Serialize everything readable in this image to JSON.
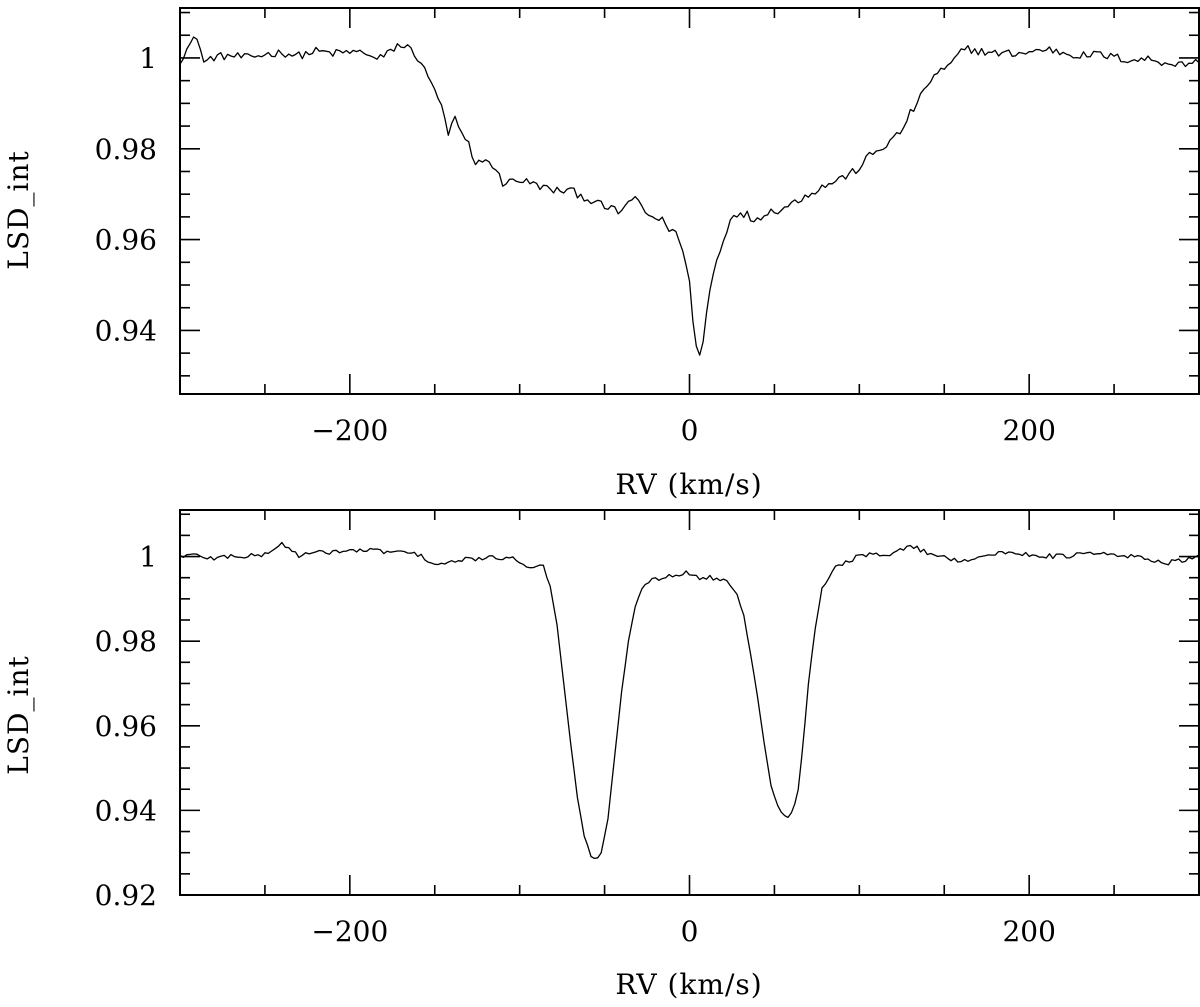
{
  "chart_data": [
    {
      "type": "line",
      "xlabel": "RV (km/s)",
      "ylabel": "LSD_int",
      "xlim": [
        -300,
        300
      ],
      "ylim": [
        0.926,
        1.011
      ],
      "xticks_major": [
        -200,
        0,
        200
      ],
      "xtick_labels": [
        "−200",
        "0",
        "200"
      ],
      "yticks_major": [
        0.94,
        0.96,
        0.98,
        1.0
      ],
      "ytick_labels": [
        "0.94",
        "0.96",
        "0.98",
        "1"
      ],
      "grid": false,
      "series": [
        {
          "anchors": [
            [
              -300,
              0.9995
            ],
            [
              -295,
              1.0025
            ],
            [
              -290,
              1.0048
            ],
            [
              -286,
              0.999
            ],
            [
              -280,
              1.0002
            ],
            [
              -270,
              1.0005
            ],
            [
              -260,
              1.0
            ],
            [
              -250,
              1.0008
            ],
            [
              -240,
              1.0012
            ],
            [
              -230,
              1.0005
            ],
            [
              -220,
              1.0015
            ],
            [
              -210,
              1.001
            ],
            [
              -200,
              1.0013
            ],
            [
              -190,
              1.0012
            ],
            [
              -185,
              0.9995
            ],
            [
              -178,
              1.0008
            ],
            [
              -172,
              1.0028
            ],
            [
              -166,
              1.0024
            ],
            [
              -162,
              1.001
            ],
            [
              -158,
              0.999
            ],
            [
              -154,
              0.9955
            ],
            [
              -150,
              0.9935
            ],
            [
              -146,
              0.989
            ],
            [
              -142,
              0.9832
            ],
            [
              -138,
              0.9868
            ],
            [
              -134,
              0.9828
            ],
            [
              -130,
              0.9808
            ],
            [
              -126,
              0.976
            ],
            [
              -122,
              0.9778
            ],
            [
              -116,
              0.9765
            ],
            [
              -110,
              0.9725
            ],
            [
              -100,
              0.9732
            ],
            [
              -90,
              0.972
            ],
            [
              -80,
              0.9708
            ],
            [
              -70,
              0.9708
            ],
            [
              -60,
              0.969
            ],
            [
              -50,
              0.9672
            ],
            [
              -40,
              0.966
            ],
            [
              -35,
              0.9692
            ],
            [
              -30,
              0.9682
            ],
            [
              -25,
              0.9655
            ],
            [
              -20,
              0.9648
            ],
            [
              -15,
              0.964
            ],
            [
              -12,
              0.9625
            ],
            [
              -8,
              0.9615
            ],
            [
              -5,
              0.9588
            ],
            [
              -2,
              0.9545
            ],
            [
              0,
              0.951
            ],
            [
              2,
              0.942
            ],
            [
              4,
              0.9365
            ],
            [
              6,
              0.9345
            ],
            [
              8,
              0.9375
            ],
            [
              11,
              0.947
            ],
            [
              14,
              0.9525
            ],
            [
              18,
              0.958
            ],
            [
              22,
              0.9622
            ],
            [
              26,
              0.9662
            ],
            [
              30,
              0.9652
            ],
            [
              34,
              0.9655
            ],
            [
              38,
              0.9642
            ],
            [
              45,
              0.966
            ],
            [
              55,
              0.9668
            ],
            [
              65,
              0.969
            ],
            [
              75,
              0.971
            ],
            [
              85,
              0.9728
            ],
            [
              95,
              0.9745
            ],
            [
              100,
              0.9758
            ],
            [
              105,
              0.9782
            ],
            [
              112,
              0.9798
            ],
            [
              118,
              0.9815
            ],
            [
              125,
              0.984
            ],
            [
              130,
              0.9878
            ],
            [
              135,
              0.9905
            ],
            [
              140,
              0.9942
            ],
            [
              146,
              0.9968
            ],
            [
              152,
              0.9978
            ],
            [
              158,
              1.0005
            ],
            [
              163,
              1.0022
            ],
            [
              170,
              1.0015
            ],
            [
              180,
              1.001
            ],
            [
              190,
              1.001
            ],
            [
              200,
              1.0012
            ],
            [
              210,
              1.002
            ],
            [
              220,
              1.0012
            ],
            [
              230,
              1.0005
            ],
            [
              240,
              1.0008
            ],
            [
              250,
              1.0002
            ],
            [
              260,
              0.9995
            ],
            [
              270,
              0.9998
            ],
            [
              280,
              0.999
            ],
            [
              290,
              0.9985
            ],
            [
              300,
              0.9995
            ]
          ]
        }
      ]
    },
    {
      "type": "line",
      "xlabel": "RV (km/s)",
      "ylabel": "LSD_int",
      "xlim": [
        -300,
        300
      ],
      "ylim": [
        0.92,
        1.011
      ],
      "xticks_major": [
        -200,
        0,
        200
      ],
      "xtick_labels": [
        "−200",
        "0",
        "200"
      ],
      "yticks_major": [
        0.92,
        0.94,
        0.96,
        0.98,
        1.0
      ],
      "ytick_labels": [
        "0.92",
        "0.94",
        "0.96",
        "0.98",
        "1"
      ],
      "grid": false,
      "series": [
        {
          "anchors": [
            [
              -300,
              1.0002
            ],
            [
              -290,
              1.0003
            ],
            [
              -280,
              0.9995
            ],
            [
              -270,
              1.0002
            ],
            [
              -260,
              1.0
            ],
            [
              -250,
              1.0005
            ],
            [
              -240,
              1.003
            ],
            [
              -230,
              1.0003
            ],
            [
              -220,
              1.0008
            ],
            [
              -210,
              1.0012
            ],
            [
              -200,
              1.0013
            ],
            [
              -190,
              1.0015
            ],
            [
              -180,
              1.0012
            ],
            [
              -170,
              1.001
            ],
            [
              -160,
              1.0005
            ],
            [
              -150,
              0.9982
            ],
            [
              -140,
              0.9985
            ],
            [
              -130,
              0.9995
            ],
            [
              -120,
              0.9995
            ],
            [
              -110,
              0.9998
            ],
            [
              -100,
              0.999
            ],
            [
              -94,
              0.9975
            ],
            [
              -90,
              0.998
            ],
            [
              -86,
              0.9975
            ],
            [
              -82,
              0.993
            ],
            [
              -78,
              0.984
            ],
            [
              -74,
              0.97
            ],
            [
              -70,
              0.956
            ],
            [
              -66,
              0.943
            ],
            [
              -62,
              0.934
            ],
            [
              -58,
              0.9292
            ],
            [
              -55,
              0.9283
            ],
            [
              -52,
              0.93
            ],
            [
              -48,
              0.938
            ],
            [
              -44,
              0.953
            ],
            [
              -40,
              0.968
            ],
            [
              -36,
              0.98
            ],
            [
              -32,
              0.988
            ],
            [
              -28,
              0.9925
            ],
            [
              -24,
              0.9942
            ],
            [
              -20,
              0.9948
            ],
            [
              -16,
              0.995
            ],
            [
              -12,
              0.9955
            ],
            [
              -8,
              0.9958
            ],
            [
              -4,
              0.9962
            ],
            [
              0,
              0.996
            ],
            [
              4,
              0.9955
            ],
            [
              8,
              0.9945
            ],
            [
              12,
              0.995
            ],
            [
              16,
              0.9948
            ],
            [
              20,
              0.9945
            ],
            [
              24,
              0.9935
            ],
            [
              28,
              0.991
            ],
            [
              32,
              0.986
            ],
            [
              36,
              0.977
            ],
            [
              40,
              0.967
            ],
            [
              44,
              0.956
            ],
            [
              48,
              0.946
            ],
            [
              52,
              0.941
            ],
            [
              55,
              0.939
            ],
            [
              58,
              0.9385
            ],
            [
              61,
              0.94
            ],
            [
              64,
              0.945
            ],
            [
              67,
              0.956
            ],
            [
              70,
              0.97
            ],
            [
              74,
              0.983
            ],
            [
              78,
              0.9925
            ],
            [
              83,
              0.9962
            ],
            [
              90,
              0.9985
            ],
            [
              100,
              1.0
            ],
            [
              110,
              1.0005
            ],
            [
              120,
              1.0008
            ],
            [
              130,
              1.0025
            ],
            [
              140,
              1.001
            ],
            [
              150,
              0.9998
            ],
            [
              160,
              0.999
            ],
            [
              170,
              1.0
            ],
            [
              180,
              1.0005
            ],
            [
              190,
              1.001
            ],
            [
              200,
              1.0005
            ],
            [
              210,
              1.0002
            ],
            [
              220,
              1.0
            ],
            [
              230,
              1.0005
            ],
            [
              240,
              1.0008
            ],
            [
              250,
              1.0002
            ],
            [
              260,
              1.0
            ],
            [
              270,
              0.9995
            ],
            [
              280,
              0.9985
            ],
            [
              290,
              0.999
            ],
            [
              300,
              0.9998
            ]
          ]
        }
      ]
    }
  ]
}
